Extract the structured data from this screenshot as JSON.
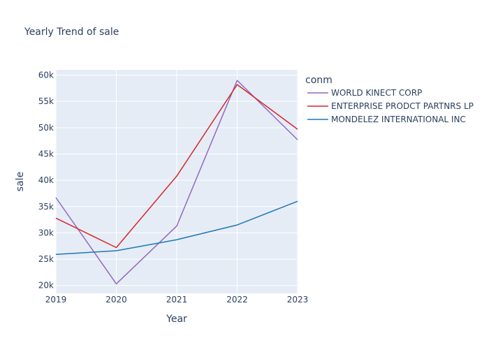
{
  "chart_data": {
    "type": "line",
    "title": "Yearly Trend of sale",
    "xlabel": "Year",
    "ylabel": "sale",
    "x": [
      2019,
      2020,
      2021,
      2022,
      2023
    ],
    "xlim": [
      2019,
      2023
    ],
    "ylim": [
      18500,
      61000
    ],
    "yticks": [
      20000,
      25000,
      30000,
      35000,
      40000,
      45000,
      50000,
      55000,
      60000
    ],
    "ytick_labels": [
      "20k",
      "25k",
      "30k",
      "35k",
      "40k",
      "45k",
      "50k",
      "55k",
      "60k"
    ],
    "xtick_labels": [
      "2019",
      "2020",
      "2021",
      "2022",
      "2023"
    ],
    "grid": true,
    "legend": {
      "title": "conm",
      "position": "right"
    },
    "series": [
      {
        "name": "WORLD KINECT CORP",
        "color": "#9467bd",
        "values": [
          36700,
          20300,
          31300,
          59000,
          47700
        ]
      },
      {
        "name": "ENTERPRISE PRODCT PARTNRS LP",
        "color": "#d62728",
        "values": [
          32800,
          27200,
          40800,
          58200,
          49700
        ]
      },
      {
        "name": "MONDELEZ INTERNATIONAL INC",
        "color": "#1f77b4",
        "values": [
          25900,
          26600,
          28700,
          31500,
          36000
        ]
      }
    ]
  }
}
